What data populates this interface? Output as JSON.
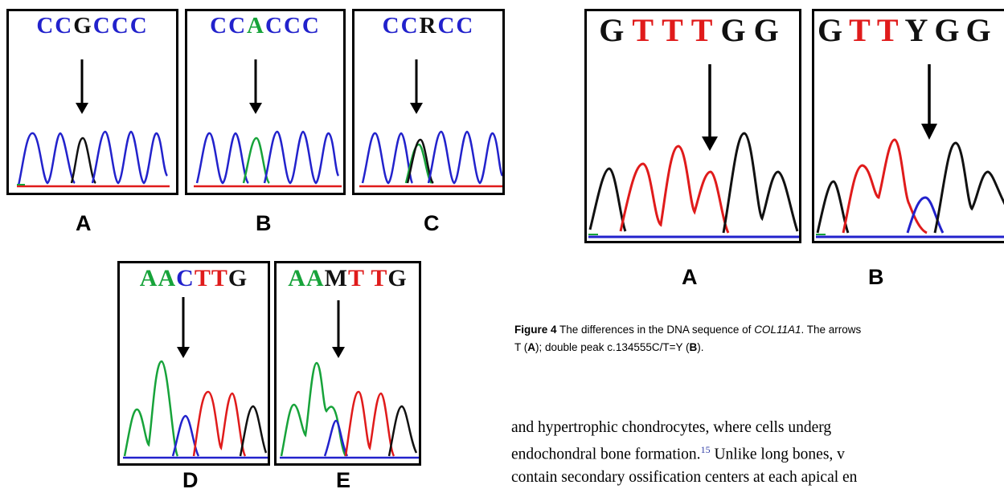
{
  "left_figure": {
    "panels": [
      {
        "id": "A",
        "bases": [
          {
            "ch": "C",
            "color": "#2222cc"
          },
          {
            "ch": "C",
            "color": "#2222cc"
          },
          {
            "ch": "G",
            "color": "#111111"
          },
          {
            "ch": "C",
            "color": "#2222cc"
          },
          {
            "ch": "C",
            "color": "#2222cc"
          },
          {
            "ch": "C",
            "color": "#2222cc"
          }
        ],
        "label": "A"
      },
      {
        "id": "B",
        "bases": [
          {
            "ch": "C",
            "color": "#2222cc"
          },
          {
            "ch": "C",
            "color": "#2222cc"
          },
          {
            "ch": "A",
            "color": "#17a33a"
          },
          {
            "ch": "C",
            "color": "#2222cc"
          },
          {
            "ch": "C",
            "color": "#2222cc"
          },
          {
            "ch": "C",
            "color": "#2222cc"
          }
        ],
        "label": "B"
      },
      {
        "id": "C",
        "bases": [
          {
            "ch": "C",
            "color": "#2222cc"
          },
          {
            "ch": "C",
            "color": "#2222cc"
          },
          {
            "ch": "R",
            "color": "#111111"
          },
          {
            "ch": "C",
            "color": "#2222cc"
          },
          {
            "ch": "C",
            "color": "#2222cc"
          }
        ],
        "label": "C"
      },
      {
        "id": "D",
        "bases": [
          {
            "ch": "A",
            "color": "#17a33a"
          },
          {
            "ch": "A",
            "color": "#17a33a"
          },
          {
            "ch": "C",
            "color": "#2222cc"
          },
          {
            "ch": "T",
            "color": "#e01b1b"
          },
          {
            "ch": "T",
            "color": "#e01b1b"
          },
          {
            "ch": "G",
            "color": "#111111"
          }
        ],
        "label": "D"
      },
      {
        "id": "E",
        "bases": [
          {
            "ch": "A",
            "color": "#17a33a"
          },
          {
            "ch": "A",
            "color": "#17a33a"
          },
          {
            "ch": "M",
            "color": "#111111"
          },
          {
            "ch": "T",
            "color": "#e01b1b"
          },
          {
            "ch": " ",
            "color": "#e01b1b"
          },
          {
            "ch": "T",
            "color": "#e01b1b"
          },
          {
            "ch": "G",
            "color": "#111111"
          }
        ],
        "label": "E"
      }
    ]
  },
  "right_figure": {
    "panels": [
      {
        "id": "A",
        "bases": [
          {
            "ch": "G",
            "color": "#111111"
          },
          {
            "ch": "T",
            "color": "#e01b1b"
          },
          {
            "ch": "T",
            "color": "#e01b1b"
          },
          {
            "ch": "T",
            "color": "#e01b1b"
          },
          {
            "ch": "G",
            "color": "#111111"
          },
          {
            "ch": "G",
            "color": "#111111"
          }
        ],
        "label": "A"
      },
      {
        "id": "B",
        "bases": [
          {
            "ch": "G",
            "color": "#111111"
          },
          {
            "ch": "T",
            "color": "#e01b1b"
          },
          {
            "ch": "T",
            "color": "#e01b1b"
          },
          {
            "ch": "Y",
            "color": "#111111"
          },
          {
            "ch": "G",
            "color": "#111111"
          },
          {
            "ch": "G",
            "color": "#111111"
          }
        ],
        "label": "B"
      }
    ],
    "caption": {
      "bold": "Figure 4",
      "text1": " The differences in the DNA sequence of ",
      "gene": "COL11A1",
      "text2": ". The arrows",
      "line2_a": "T (",
      "line2_b": "A",
      "line2_c": "); double peak c.134555C/T=Y (",
      "line2_d": "B",
      "line2_e": ")."
    }
  },
  "body_text": {
    "line1": "and hypertrophic chondrocytes, where cells underg",
    "line2_a": "endochondral bone formation.",
    "line2_ref": "15",
    "line2_b": " Unlike long bones, v",
    "line3": "contain secondary ossification centers at each apical en"
  },
  "colors": {
    "blue": "#2222cc",
    "green": "#17a33a",
    "red": "#e01b1b",
    "black": "#111111"
  }
}
